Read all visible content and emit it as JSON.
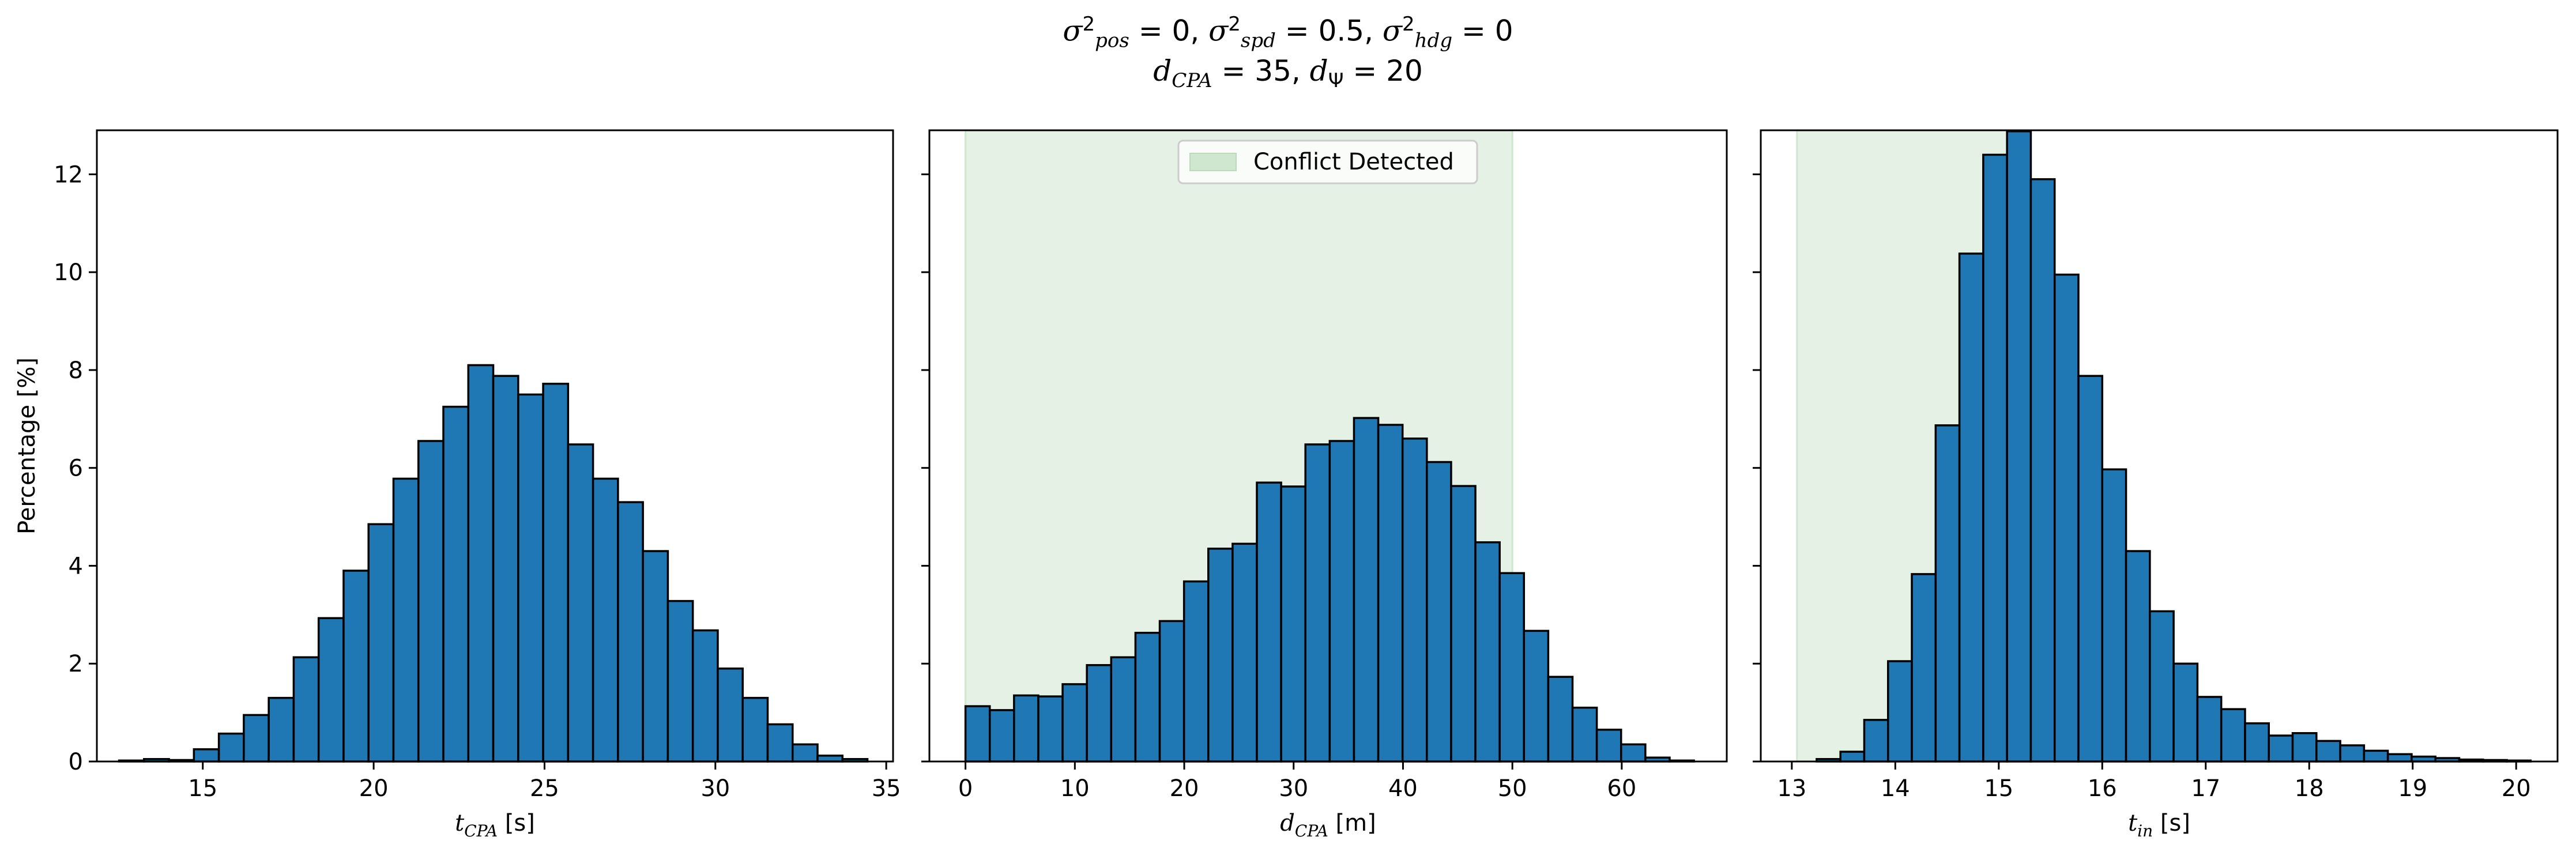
{
  "figure": {
    "title_line1": "σ²pos = 0, σ²spd = 0.5, σ²hdg = 0",
    "title_line2": "dCPA = 35, dΨ = 20"
  },
  "colors": {
    "bar_fill": "#1f77b4",
    "bar_edge": "#000000",
    "conflict_shade": "#cfe6cf"
  },
  "chart_data": [
    {
      "type": "bar",
      "name": "t_cpa_histogram",
      "xlabel": "t_CPA [s]",
      "ylabel": "Percentage [%]",
      "xlim": [
        11.9,
        35.2
      ],
      "ylim": [
        0,
        12.9
      ],
      "xticks": [
        15,
        20,
        25,
        30,
        35
      ],
      "yticks": [
        0,
        2,
        4,
        6,
        8,
        10,
        12
      ],
      "bin_edges": [
        12.55,
        13.28,
        14.01,
        14.74,
        15.47,
        16.2,
        16.93,
        17.66,
        18.39,
        19.12,
        19.85,
        20.58,
        21.31,
        22.04,
        22.77,
        23.5,
        24.23,
        24.96,
        25.69,
        26.42,
        27.15,
        27.88,
        28.61,
        29.34,
        30.07,
        30.8,
        31.53,
        32.26,
        32.99,
        33.72,
        34.45
      ],
      "values": [
        0.02,
        0.05,
        0.03,
        0.25,
        0.57,
        0.95,
        1.3,
        2.13,
        2.93,
        3.9,
        4.85,
        5.78,
        6.55,
        7.25,
        8.1,
        7.88,
        7.5,
        7.72,
        6.48,
        5.78,
        5.3,
        4.3,
        3.28,
        2.68,
        1.9,
        1.3,
        0.76,
        0.35,
        0.12,
        0.05
      ],
      "grid": false
    },
    {
      "type": "bar",
      "name": "d_cpa_histogram",
      "xlabel": "d_CPA [m]",
      "xlim": [
        -3.3,
        69.6
      ],
      "ylim": [
        0,
        12.9
      ],
      "xticks": [
        0,
        10,
        20,
        30,
        40,
        50,
        60
      ],
      "yticks": [
        0,
        2,
        4,
        6,
        8,
        10,
        12
      ],
      "bin_edges": [
        0.0,
        2.22,
        4.44,
        6.66,
        8.88,
        11.1,
        13.32,
        15.54,
        17.76,
        19.98,
        22.2,
        24.42,
        26.64,
        28.86,
        31.08,
        33.3,
        35.52,
        37.74,
        39.96,
        42.18,
        44.4,
        46.62,
        48.84,
        51.06,
        53.28,
        55.5,
        57.72,
        59.94,
        62.16,
        64.38,
        66.6
      ],
      "values": [
        1.13,
        1.05,
        1.35,
        1.33,
        1.58,
        1.97,
        2.13,
        2.63,
        2.87,
        3.68,
        4.35,
        4.45,
        5.7,
        5.62,
        6.48,
        6.55,
        7.02,
        6.88,
        6.6,
        6.12,
        5.63,
        4.48,
        3.85,
        2.67,
        1.73,
        1.1,
        0.65,
        0.35,
        0.08,
        0.02
      ],
      "conflict_region": [
        0,
        50
      ],
      "legend": {
        "label": "Conflict Detected",
        "placement": "upper center"
      },
      "grid": false
    },
    {
      "type": "bar",
      "name": "t_in_histogram",
      "xlabel": "t_in [s]",
      "xlim": [
        12.7,
        20.4
      ],
      "ylim": [
        0,
        12.9
      ],
      "xticks": [
        13,
        14,
        15,
        16,
        17,
        18,
        19,
        20
      ],
      "yticks": [
        0,
        2,
        4,
        6,
        8,
        10,
        12
      ],
      "conflict_region": [
        13.05,
        15.1
      ],
      "bin_edges": [
        13.24,
        13.47,
        13.7,
        13.93,
        14.16,
        14.39,
        14.62,
        14.85,
        15.08,
        15.31,
        15.54,
        15.77,
        16.0,
        16.23,
        16.46,
        16.69,
        16.92,
        17.15,
        17.38,
        17.61,
        17.84,
        18.07,
        18.3,
        18.53,
        18.76,
        18.99,
        19.22,
        19.45,
        19.68,
        19.91,
        20.14
      ],
      "values": [
        0.05,
        0.2,
        0.85,
        2.05,
        3.83,
        6.87,
        10.38,
        12.4,
        12.88,
        11.9,
        9.95,
        7.88,
        5.97,
        4.3,
        3.07,
        2.0,
        1.32,
        1.07,
        0.78,
        0.53,
        0.58,
        0.42,
        0.33,
        0.22,
        0.15,
        0.1,
        0.07,
        0.04,
        0.03,
        0.02
      ],
      "grid": false
    }
  ]
}
